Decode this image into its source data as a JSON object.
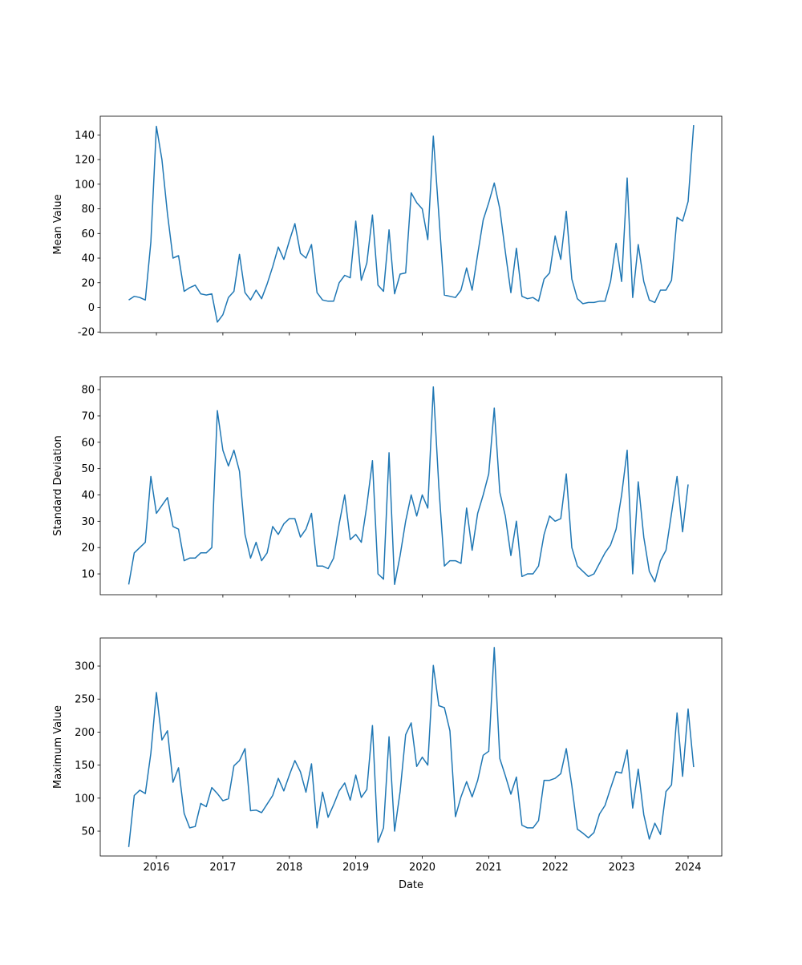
{
  "chart_data": [
    {
      "type": "line",
      "title": "",
      "xlabel": "",
      "ylabel": "Mean Value",
      "ylim": [
        -20.5,
        155.2
      ],
      "yticks": [
        -20,
        0,
        20,
        40,
        60,
        80,
        100,
        120,
        140
      ],
      "color": "#1f77b4",
      "series": [
        {
          "name": "Mean Value",
          "start": "2015-08",
          "frequency": "monthly",
          "values": [
            6,
            9,
            8,
            6,
            53,
            147,
            120,
            76,
            40,
            42,
            13,
            16,
            18,
            11,
            10,
            11,
            -12,
            -6,
            8,
            13,
            43,
            12,
            6,
            14,
            7,
            19,
            33,
            49,
            39,
            54,
            68,
            44,
            40,
            51,
            12,
            6,
            5,
            5,
            20,
            26,
            24,
            70,
            22,
            36,
            75,
            18,
            13,
            63,
            11,
            27,
            28,
            93,
            85,
            80,
            55,
            139,
            75,
            10,
            9,
            8,
            14,
            32,
            14,
            43,
            71,
            85,
            101,
            80,
            45,
            12,
            48,
            9,
            7,
            8,
            5,
            23,
            28,
            58,
            39,
            78,
            23,
            7,
            3,
            4,
            4,
            5,
            5,
            21,
            52,
            21,
            105,
            8,
            51,
            21,
            6,
            4,
            14,
            14,
            22,
            73,
            70,
            86,
            148
          ]
        }
      ]
    },
    {
      "type": "line",
      "title": "",
      "xlabel": "",
      "ylabel": "Standard Deviation",
      "ylim": [
        2.1,
        84.9
      ],
      "yticks": [
        10,
        20,
        30,
        40,
        50,
        60,
        70,
        80
      ],
      "color": "#1f77b4",
      "series": [
        {
          "name": "Standard Deviation",
          "start": "2015-08",
          "frequency": "monthly",
          "values": [
            6,
            18,
            20,
            22,
            47,
            33,
            36,
            39,
            28,
            27,
            15,
            16,
            16,
            18,
            18,
            20,
            72,
            57,
            51,
            57,
            49,
            25,
            16,
            22,
            15,
            18,
            28,
            25,
            29,
            31,
            31,
            24,
            27,
            33,
            13,
            13,
            12,
            16,
            29,
            40,
            23,
            25,
            22,
            36,
            53,
            10,
            8,
            56,
            6,
            17,
            30,
            40,
            32,
            40,
            35,
            81,
            43,
            13,
            15,
            15,
            14,
            35,
            19,
            33,
            40,
            48,
            73,
            41,
            32,
            17,
            30,
            9,
            10,
            10,
            13,
            25,
            32,
            30,
            31,
            48,
            20,
            13,
            11,
            9,
            10,
            14,
            18,
            21,
            27,
            40,
            57,
            10,
            45,
            24,
            11,
            7,
            15,
            19,
            33,
            47,
            26,
            44,
            null
          ]
        }
      ]
    },
    {
      "type": "line",
      "title": "",
      "xlabel": "Date",
      "ylabel": "Maximum Value",
      "ylim": [
        12.4,
        342.5
      ],
      "yticks": [
        50,
        100,
        150,
        200,
        250,
        300
      ],
      "xticks": [
        "2016",
        "2017",
        "2018",
        "2019",
        "2020",
        "2021",
        "2022",
        "2023",
        "2024"
      ],
      "xlim": [
        2015.155,
        2024.507
      ],
      "color": "#1f77b4",
      "series": [
        {
          "name": "Maximum Value",
          "start": "2015-08",
          "frequency": "monthly",
          "values": [
            26,
            104,
            112,
            107,
            168,
            260,
            188,
            202,
            124,
            146,
            77,
            55,
            57,
            92,
            87,
            116,
            107,
            96,
            99,
            149,
            157,
            175,
            81,
            82,
            78,
            91,
            104,
            130,
            111,
            135,
            157,
            140,
            109,
            152,
            55,
            109,
            71,
            90,
            111,
            123,
            97,
            135,
            101,
            113,
            210,
            33,
            55,
            193,
            50,
            110,
            196,
            214,
            148,
            162,
            150,
            301,
            240,
            237,
            202,
            72,
            102,
            125,
            102,
            127,
            165,
            171,
            328,
            160,
            134,
            106,
            132,
            59,
            55,
            55,
            66,
            127,
            127,
            130,
            137,
            175,
            119,
            53,
            47,
            40,
            48,
            76,
            89,
            115,
            140,
            138,
            173,
            85,
            144,
            75,
            38,
            62,
            45,
            110,
            120,
            229,
            133,
            235,
            147
          ]
        }
      ]
    }
  ]
}
